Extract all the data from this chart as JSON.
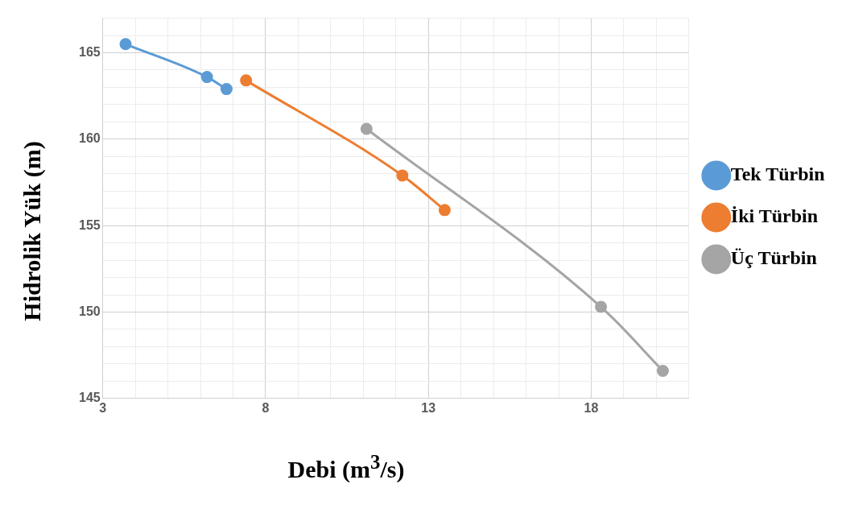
{
  "chart_data": {
    "type": "line",
    "xlabel": "Debi (m$^{3}$/s)",
    "ylabel": "Hidrolik Yük (m)",
    "xlim": [
      3,
      21
    ],
    "xticks": [
      3,
      {
        "value": 4,
        "label": null
      },
      {
        "value": 5,
        "label": null
      },
      {
        "value": 6,
        "label": null
      },
      {
        "value": 7,
        "label": null
      },
      8,
      {
        "value": 9,
        "label": null
      },
      {
        "value": 10,
        "label": null
      },
      {
        "value": 11,
        "label": null
      },
      {
        "value": 12,
        "label": null
      },
      13,
      {
        "value": 14,
        "label": null
      },
      {
        "value": 15,
        "label": null
      },
      {
        "value": 16,
        "label": null
      },
      {
        "value": 17,
        "label": null
      },
      18,
      {
        "value": 19,
        "label": null
      },
      {
        "value": 20,
        "label": null
      },
      {
        "value": 21,
        "label": null
      }
    ],
    "ylim": [
      145,
      167
    ],
    "yticks": [
      145,
      {
        "value": 146,
        "label": null
      },
      {
        "value": 147,
        "label": null
      },
      {
        "value": 148,
        "label": null
      },
      {
        "value": 149,
        "label": null
      },
      150,
      {
        "value": 151,
        "label": null
      },
      {
        "value": 152,
        "label": null
      },
      {
        "value": 153,
        "label": null
      },
      {
        "value": 154,
        "label": null
      },
      155,
      {
        "value": 156,
        "label": null
      },
      {
        "value": 157,
        "label": null
      },
      {
        "value": 158,
        "label": null
      },
      {
        "value": 159,
        "label": null
      },
      160,
      {
        "value": 161,
        "label": null
      },
      {
        "value": 162,
        "label": null
      },
      {
        "value": 163,
        "label": null
      },
      {
        "value": 164,
        "label": null
      },
      165,
      {
        "value": 166,
        "label": null
      },
      {
        "value": 167,
        "label": null
      }
    ],
    "grid": true,
    "legend": "right",
    "marker": "circle",
    "line_style": "solid",
    "series": [
      {
        "name": "Tek Türbin",
        "color": "#5b9bd5",
        "x": [
          3.7,
          6.2,
          6.8
        ],
        "values": [
          165.5,
          163.6,
          162.9
        ]
      },
      {
        "name": "İki Türbin",
        "color": "#ed7d31",
        "x": [
          7.4,
          12.2,
          13.5
        ],
        "values": [
          163.4,
          157.9,
          155.9
        ]
      },
      {
        "name": "Üç Türbin",
        "color": "#a5a5a5",
        "x": [
          11.1,
          18.3,
          20.2
        ],
        "values": [
          160.6,
          150.3,
          146.6
        ]
      }
    ]
  }
}
